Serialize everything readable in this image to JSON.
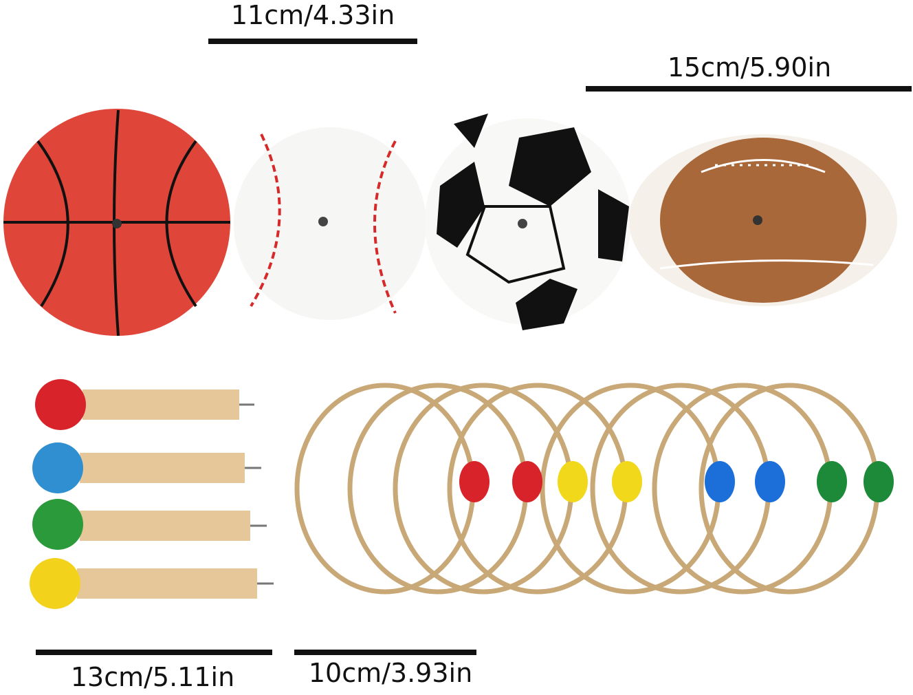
{
  "dimensions": {
    "disc_small": "11cm/4.33in",
    "disc_football": "15cm/5.90in",
    "peg_length": "13cm/5.11in",
    "ring_diameter": "10cm/3.93in"
  },
  "colors": {
    "basketball": "#e0453a",
    "football": "#a8683a",
    "rope": "#c9a877",
    "wood": "#e6c79a",
    "peg_heads": [
      "#d8232a",
      "#2f8fd0",
      "#2a9a3a",
      "#f2d21a"
    ],
    "beads": [
      "#d8232a",
      "#d8232a",
      "#f2d81a",
      "#f2d81a",
      "#1c6fd8",
      "#1c6fd8",
      "#1d8a3a",
      "#1d8a3a"
    ]
  }
}
